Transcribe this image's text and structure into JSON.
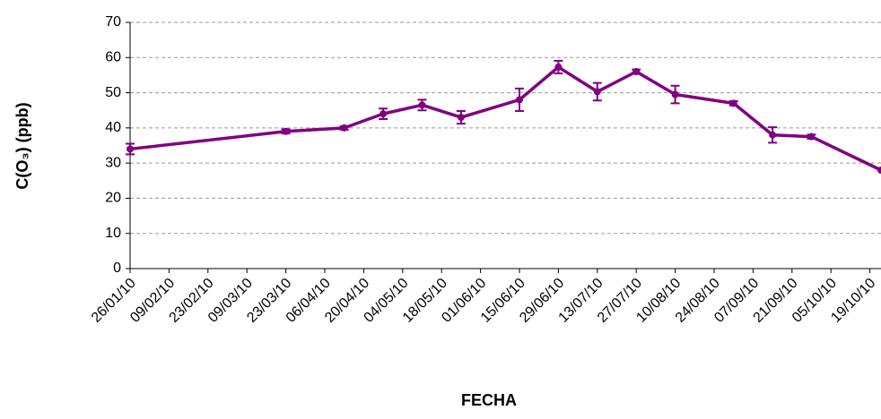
{
  "chart_data": {
    "type": "line",
    "x_label": "FECHA",
    "y_label": "C(O₃) (ppb)",
    "x": [
      "26/01/10",
      "23/03/10",
      "13/04/10",
      "27/04/10",
      "11/05/10",
      "25/05/10",
      "15/06/10",
      "29/06/10",
      "13/07/10",
      "27/07/10",
      "10/08/10",
      "31/08/10",
      "14/09/10",
      "28/09/10",
      "23/10/10"
    ],
    "series": [
      {
        "name": "C(O₃)",
        "color": "#800080",
        "values": [
          34,
          39,
          40,
          44,
          46.5,
          43,
          48,
          57.3,
          50.3,
          56,
          49.5,
          47,
          38,
          37.5,
          28
        ],
        "errors": [
          1.5,
          0.6,
          0.5,
          1.5,
          1.5,
          1.8,
          3.2,
          1.8,
          2.5,
          0.6,
          2.5,
          0.6,
          2.2,
          0.6,
          null
        ]
      }
    ],
    "xlim": [
      "26/01/10",
      "23/10/10"
    ],
    "xticks": [
      "26/01/10",
      "09/02/10",
      "23/02/10",
      "09/03/10",
      "23/03/10",
      "06/04/10",
      "20/04/10",
      "04/05/10",
      "18/05/10",
      "01/06/10",
      "15/06/10",
      "29/06/10",
      "13/07/10",
      "27/07/10",
      "10/08/10",
      "24/08/10",
      "07/09/10",
      "21/09/10",
      "05/10/10",
      "19/10/10"
    ],
    "ylim": [
      0,
      70
    ],
    "yticks": [
      0,
      10,
      20,
      30,
      40,
      50,
      60,
      70
    ],
    "grid": true
  }
}
